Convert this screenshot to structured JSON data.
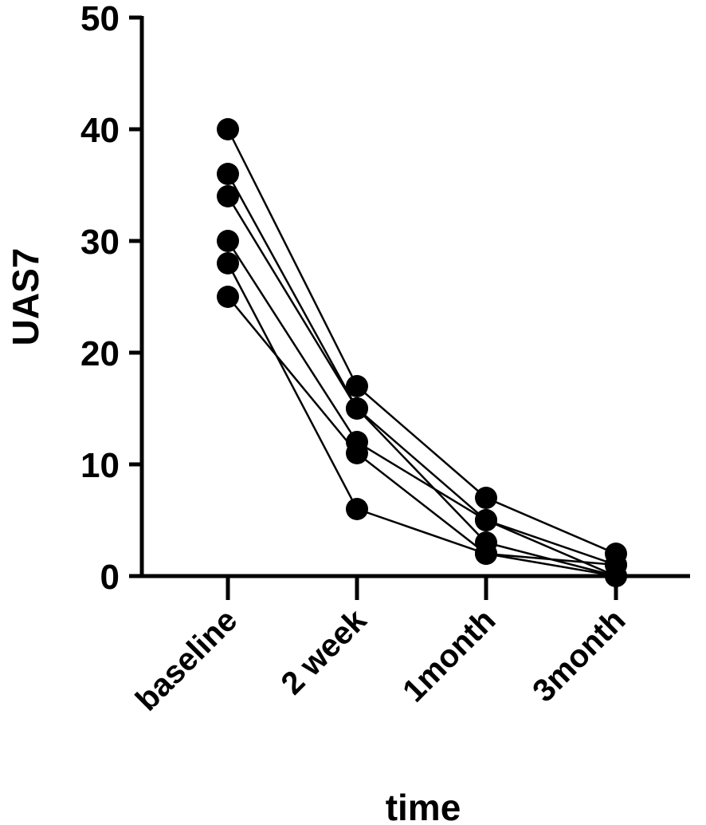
{
  "chart_data": {
    "type": "line",
    "title": "",
    "xlabel": "time",
    "ylabel": "UAS7",
    "categories": [
      "baseline",
      "2 week",
      "1month",
      "3month"
    ],
    "ylim": [
      0,
      50
    ],
    "yticks": [
      "0",
      "10",
      "20",
      "30",
      "40",
      "50"
    ],
    "grid": false,
    "marker_color": "#000000",
    "series": [
      {
        "values": [
          40,
          17,
          7,
          2
        ]
      },
      {
        "values": [
          36,
          15,
          5,
          1
        ]
      },
      {
        "values": [
          34,
          15,
          3,
          0
        ]
      },
      {
        "values": [
          30,
          12,
          5,
          0
        ]
      },
      {
        "values": [
          28,
          6,
          2,
          0
        ]
      },
      {
        "values": [
          25,
          11,
          2,
          1
        ]
      }
    ]
  }
}
